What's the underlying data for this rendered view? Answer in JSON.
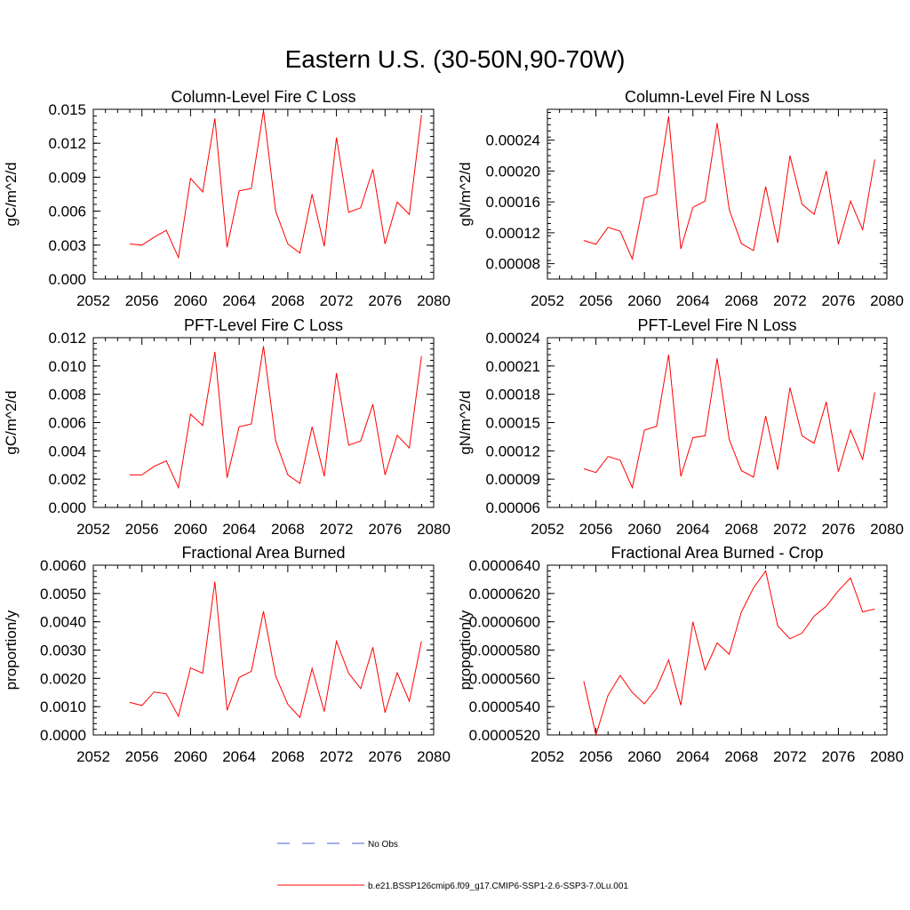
{
  "figure": {
    "title": "Eastern U.S. (30-50N,90-70W)"
  },
  "legend": {
    "items": [
      {
        "label": "No Obs",
        "color": "#4a5fd0",
        "style": "dashed"
      },
      {
        "label": "b.e21.BSSP126cmip6.f09_g17.CMIP6-SSP1-2.6-SSP3-7.0Lu.001",
        "color": "#ff0000",
        "style": "solid"
      }
    ]
  },
  "chart_data": [
    {
      "type": "line",
      "title": "Column-Level Fire C Loss",
      "ylabel": "gC/m^2/d",
      "xlim": [
        2052,
        2080
      ],
      "xticks": [
        "2052",
        "2056",
        "2060",
        "2064",
        "2068",
        "2072",
        "2076",
        "2080"
      ],
      "ylim": [
        0,
        0.015
      ],
      "yticks": [
        "0.000",
        "0.003",
        "0.006",
        "0.009",
        "0.012",
        "0.015"
      ],
      "x": [
        2055,
        2056,
        2057,
        2058,
        2059,
        2060,
        2061,
        2062,
        2063,
        2064,
        2065,
        2066,
        2067,
        2068,
        2069,
        2070,
        2071,
        2072,
        2073,
        2074,
        2075,
        2076,
        2077,
        2078,
        2079
      ],
      "series": [
        {
          "name": "b.e21.BSSP126cmip6.f09_g17.CMIP6-SSP1-2.6-SSP3-7.0Lu.001",
          "color": "#ff0000",
          "values": [
            0.0031,
            0.003,
            0.0037,
            0.0043,
            0.0019,
            0.0089,
            0.0077,
            0.0142,
            0.0028,
            0.0078,
            0.008,
            0.0149,
            0.006,
            0.0031,
            0.0023,
            0.0075,
            0.0029,
            0.0125,
            0.0059,
            0.0063,
            0.0097,
            0.0031,
            0.0068,
            0.0057,
            0.0145
          ]
        }
      ]
    },
    {
      "type": "line",
      "title": "Column-Level Fire N Loss",
      "ylabel": "gN/m^2/d",
      "xlim": [
        2052,
        2080
      ],
      "xticks": [
        "2052",
        "2056",
        "2060",
        "2064",
        "2068",
        "2072",
        "2076",
        "2080"
      ],
      "ylim": [
        6e-05,
        0.00028
      ],
      "yticks": [
        "0.00008",
        "0.00012",
        "0.00016",
        "0.00020",
        "0.00024"
      ],
      "x": [
        2055,
        2056,
        2057,
        2058,
        2059,
        2060,
        2061,
        2062,
        2063,
        2064,
        2065,
        2066,
        2067,
        2068,
        2069,
        2070,
        2071,
        2072,
        2073,
        2074,
        2075,
        2076,
        2077,
        2078,
        2079
      ],
      "series": [
        {
          "name": "b.e21.BSSP126cmip6.f09_g17.CMIP6-SSP1-2.6-SSP3-7.0Lu.001",
          "color": "#ff0000",
          "values": [
            0.00011,
            0.000105,
            0.000127,
            0.000122,
            8.6e-05,
            0.000165,
            0.00017,
            0.000271,
            9.9e-05,
            0.000153,
            0.000161,
            0.000262,
            0.00015,
            0.000106,
            9.7e-05,
            0.00018,
            0.000107,
            0.00022,
            0.000157,
            0.000144,
            0.0002,
            0.000105,
            0.000161,
            0.000124,
            0.000215
          ]
        }
      ]
    },
    {
      "type": "line",
      "title": "PFT-Level Fire C Loss",
      "ylabel": "gC/m^2/d",
      "xlim": [
        2052,
        2080
      ],
      "xticks": [
        "2052",
        "2056",
        "2060",
        "2064",
        "2068",
        "2072",
        "2076",
        "2080"
      ],
      "ylim": [
        0,
        0.012
      ],
      "yticks": [
        "0.000",
        "0.002",
        "0.004",
        "0.006",
        "0.008",
        "0.010",
        "0.012"
      ],
      "x": [
        2055,
        2056,
        2057,
        2058,
        2059,
        2060,
        2061,
        2062,
        2063,
        2064,
        2065,
        2066,
        2067,
        2068,
        2069,
        2070,
        2071,
        2072,
        2073,
        2074,
        2075,
        2076,
        2077,
        2078,
        2079
      ],
      "series": [
        {
          "name": "b.e21.BSSP126cmip6.f09_g17.CMIP6-SSP1-2.6-SSP3-7.0Lu.001",
          "color": "#ff0000",
          "values": [
            0.0023,
            0.0023,
            0.0029,
            0.0033,
            0.0014,
            0.0066,
            0.0058,
            0.011,
            0.0021,
            0.0057,
            0.0059,
            0.0114,
            0.0047,
            0.0023,
            0.0017,
            0.0057,
            0.0022,
            0.0095,
            0.0044,
            0.0047,
            0.0073,
            0.0023,
            0.0051,
            0.0042,
            0.0107
          ]
        }
      ]
    },
    {
      "type": "line",
      "title": "PFT-Level Fire N Loss",
      "ylabel": "gN/m^2/d",
      "xlim": [
        2052,
        2080
      ],
      "xticks": [
        "2052",
        "2056",
        "2060",
        "2064",
        "2068",
        "2072",
        "2076",
        "2080"
      ],
      "ylim": [
        6e-05,
        0.00024
      ],
      "yticks": [
        "0.00006",
        "0.00009",
        "0.00012",
        "0.00015",
        "0.00018",
        "0.00021",
        "0.00024"
      ],
      "x": [
        2055,
        2056,
        2057,
        2058,
        2059,
        2060,
        2061,
        2062,
        2063,
        2064,
        2065,
        2066,
        2067,
        2068,
        2069,
        2070,
        2071,
        2072,
        2073,
        2074,
        2075,
        2076,
        2077,
        2078,
        2079
      ],
      "series": [
        {
          "name": "b.e21.BSSP126cmip6.f09_g17.CMIP6-SSP1-2.6-SSP3-7.0Lu.001",
          "color": "#ff0000",
          "values": [
            0.000101,
            9.7e-05,
            0.000114,
            0.00011,
            8.1e-05,
            0.000142,
            0.000146,
            0.000222,
            9.3e-05,
            0.000134,
            0.000136,
            0.000218,
            0.000132,
            9.9e-05,
            9.2e-05,
            0.000157,
            0.0001,
            0.000187,
            0.000136,
            0.000128,
            0.000172,
            9.8e-05,
            0.000142,
            0.000111,
            0.000182
          ]
        }
      ]
    },
    {
      "type": "line",
      "title": "Fractional Area Burned",
      "ylabel": "proportion/y",
      "xlim": [
        2052,
        2080
      ],
      "xticks": [
        "2052",
        "2056",
        "2060",
        "2064",
        "2068",
        "2072",
        "2076",
        "2080"
      ],
      "ylim": [
        0,
        0.006
      ],
      "yticks": [
        "0.0000",
        "0.0010",
        "0.0020",
        "0.0030",
        "0.0040",
        "0.0050",
        "0.0060"
      ],
      "x": [
        2055,
        2056,
        2057,
        2058,
        2059,
        2060,
        2061,
        2062,
        2063,
        2064,
        2065,
        2066,
        2067,
        2068,
        2069,
        2070,
        2071,
        2072,
        2073,
        2074,
        2075,
        2076,
        2077,
        2078,
        2079
      ],
      "series": [
        {
          "name": "b.e21.BSSP126cmip6.f09_g17.CMIP6-SSP1-2.6-SSP3-7.0Lu.001",
          "color": "#ff0000",
          "values": [
            0.00115,
            0.00104,
            0.00152,
            0.00145,
            0.00066,
            0.00237,
            0.00218,
            0.00542,
            0.00087,
            0.00203,
            0.00225,
            0.00437,
            0.00208,
            0.00108,
            0.00062,
            0.00235,
            0.00083,
            0.00331,
            0.00218,
            0.00164,
            0.0031,
            0.00079,
            0.0022,
            0.00119,
            0.00331
          ]
        }
      ]
    },
    {
      "type": "line",
      "title": "Fractional Area Burned - Crop",
      "ylabel": "proportion/y",
      "xlim": [
        2052,
        2080
      ],
      "xticks": [
        "2052",
        "2056",
        "2060",
        "2064",
        "2068",
        "2072",
        "2076",
        "2080"
      ],
      "ylim": [
        5.2e-05,
        6.4e-05
      ],
      "yticks": [
        "0.0000520",
        "0.0000540",
        "0.0000560",
        "0.0000580",
        "0.0000600",
        "0.0000620",
        "0.0000640"
      ],
      "x": [
        2055,
        2056,
        2057,
        2058,
        2059,
        2060,
        2061,
        2062,
        2063,
        2064,
        2065,
        2066,
        2067,
        2068,
        2069,
        2070,
        2071,
        2072,
        2073,
        2074,
        2075,
        2076,
        2077,
        2078,
        2079
      ],
      "series": [
        {
          "name": "b.e21.BSSP126cmip6.f09_g17.CMIP6-SSP1-2.6-SSP3-7.0Lu.001",
          "color": "#ff0000",
          "values": [
            5.58e-05,
            5.2e-05,
            5.48e-05,
            5.62e-05,
            5.5e-05,
            5.42e-05,
            5.53e-05,
            5.73e-05,
            5.41e-05,
            6e-05,
            5.66e-05,
            5.85e-05,
            5.77e-05,
            6.07e-05,
            6.24e-05,
            6.36e-05,
            5.97e-05,
            5.88e-05,
            5.92e-05,
            6.04e-05,
            6.11e-05,
            6.22e-05,
            6.31e-05,
            6.07e-05,
            6.09e-05
          ]
        }
      ]
    }
  ]
}
